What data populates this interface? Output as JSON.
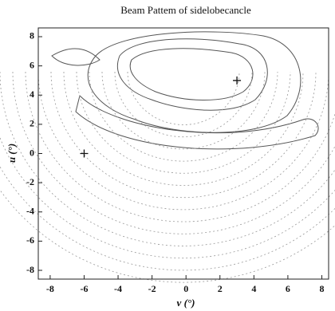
{
  "chart_data": {
    "type": "contour",
    "title": "Beam Pattem of sidelobecancle",
    "x_label": "v (°)",
    "y_label": "u (°)",
    "xlim": [
      -8.7,
      8.4
    ],
    "ylim": [
      -8.6,
      8.6
    ],
    "xticks": [
      -8,
      -6,
      -4,
      -2,
      0,
      2,
      4,
      6,
      8
    ],
    "yticks": [
      -8,
      -6,
      -4,
      -2,
      0,
      2,
      4,
      6,
      8
    ],
    "points": {
      "x": [
        -6,
        3
      ],
      "y": [
        0,
        5
      ]
    }
  }
}
